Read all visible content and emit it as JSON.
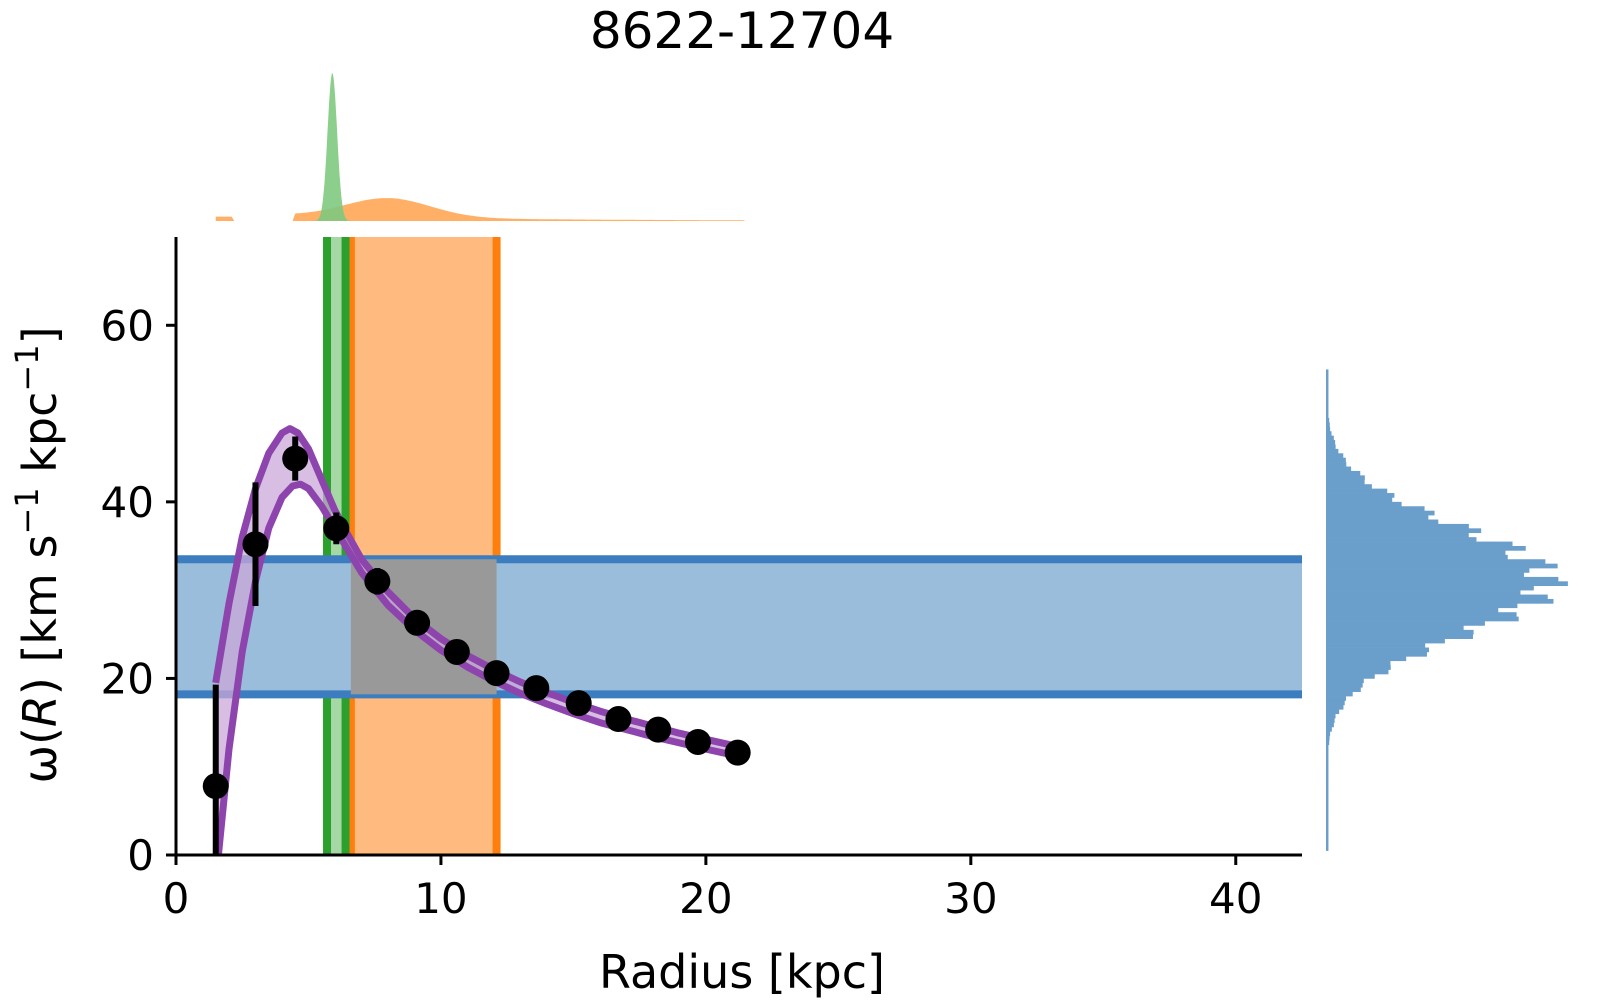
{
  "chart_data": {
    "type": "scatter",
    "title": "8622-12704",
    "xlabel": "Radius [kpc]",
    "ylabel": "ω(R) [km s⁻¹ kpc⁻¹]",
    "xlim": [
      0,
      42.5
    ],
    "ylim": [
      0,
      70
    ],
    "xticks": [
      0,
      10,
      20,
      30,
      40
    ],
    "yticks": [
      0,
      20,
      40,
      60
    ],
    "grid": false,
    "legend": "none",
    "colors": {
      "points": "#000000",
      "model": "#8e44ad",
      "model_fill": "#c9a8d8",
      "pattern_band": "#3b7dbf",
      "pattern_band_fill": "#9bbddc",
      "corotation_orange": "#ff7f0e",
      "corotation_fill": "#ffbb7f",
      "bar_green": "#2ca02c",
      "overlap_fill": "#999999",
      "hist_blue": "#6a9ecb",
      "hist_orange": "#ffb066",
      "hist_green": "#7fc97f"
    },
    "data_points": [
      {
        "x": 1.5,
        "y": 7.8,
        "err_low": 7.8,
        "err_high": 11.5
      },
      {
        "x": 3.0,
        "y": 35.2,
        "err_low": 7.0,
        "err_high": 7.0
      },
      {
        "x": 4.5,
        "y": 44.9,
        "err_low": 2.5,
        "err_high": 2.5
      },
      {
        "x": 6.05,
        "y": 37.0,
        "err_low": 1.8,
        "err_high": 1.8
      },
      {
        "x": 7.6,
        "y": 31.0,
        "err_low": 1.5,
        "err_high": 1.5
      },
      {
        "x": 9.1,
        "y": 26.3,
        "err_low": 1.0,
        "err_high": 1.0
      },
      {
        "x": 10.6,
        "y": 23.0,
        "err_low": 0.8,
        "err_high": 0.8
      },
      {
        "x": 12.1,
        "y": 20.6,
        "err_low": 0.6,
        "err_high": 0.6
      },
      {
        "x": 13.6,
        "y": 18.9,
        "err_low": 0.5,
        "err_high": 0.5
      },
      {
        "x": 15.2,
        "y": 17.2,
        "err_low": 0.5,
        "err_high": 0.5
      },
      {
        "x": 16.7,
        "y": 15.4,
        "err_low": 0.4,
        "err_high": 0.4
      },
      {
        "x": 18.2,
        "y": 14.2,
        "err_low": 0.4,
        "err_high": 0.4
      },
      {
        "x": 19.7,
        "y": 12.8,
        "err_low": 0.4,
        "err_high": 0.4
      },
      {
        "x": 21.2,
        "y": 11.6,
        "err_low": 0.4,
        "err_high": 0.4
      }
    ],
    "model_upper": [
      [
        1.5,
        19.5
      ],
      [
        2.0,
        28.5
      ],
      [
        2.5,
        36.0
      ],
      [
        3.0,
        41.5
      ],
      [
        3.5,
        45.5
      ],
      [
        4.0,
        47.8
      ],
      [
        4.3,
        48.3
      ],
      [
        4.6,
        47.8
      ],
      [
        5.0,
        46.0
      ],
      [
        5.5,
        42.5
      ],
      [
        6.0,
        39.0
      ],
      [
        6.5,
        36.2
      ],
      [
        7.0,
        33.5
      ],
      [
        8.0,
        29.8
      ],
      [
        9.0,
        26.8
      ],
      [
        10.0,
        24.5
      ],
      [
        11.0,
        22.6
      ],
      [
        12.0,
        21.0
      ],
      [
        13.0,
        19.6
      ],
      [
        14.0,
        18.4
      ],
      [
        15.0,
        17.3
      ],
      [
        16.0,
        16.3
      ],
      [
        17.0,
        15.4
      ],
      [
        18.0,
        14.6
      ],
      [
        19.0,
        13.8
      ],
      [
        20.0,
        13.1
      ],
      [
        21.2,
        12.3
      ]
    ],
    "model_lower": [
      [
        1.6,
        0.0
      ],
      [
        2.0,
        12.0
      ],
      [
        2.5,
        23.0
      ],
      [
        3.0,
        31.0
      ],
      [
        3.5,
        37.0
      ],
      [
        4.0,
        40.5
      ],
      [
        4.4,
        41.8
      ],
      [
        4.7,
        42.0
      ],
      [
        5.0,
        41.5
      ],
      [
        5.5,
        39.5
      ],
      [
        6.0,
        37.0
      ],
      [
        6.5,
        34.5
      ],
      [
        7.0,
        32.0
      ],
      [
        8.0,
        28.3
      ],
      [
        9.0,
        25.5
      ],
      [
        10.0,
        23.2
      ],
      [
        11.0,
        21.3
      ],
      [
        12.0,
        19.7
      ],
      [
        13.0,
        18.3
      ],
      [
        14.0,
        17.1
      ],
      [
        15.0,
        16.0
      ],
      [
        16.0,
        15.0
      ],
      [
        17.0,
        14.2
      ],
      [
        18.0,
        13.4
      ],
      [
        19.0,
        12.7
      ],
      [
        20.0,
        12.0
      ],
      [
        21.2,
        11.2
      ]
    ],
    "pattern_speed_band": [
      18.2,
      33.5
    ],
    "corotation_band": [
      6.6,
      12.1
    ],
    "bar_length_band": [
      5.7,
      6.4
    ],
    "top_histograms": {
      "green": {
        "x_range": [
          5.0,
          6.8
        ],
        "peak_x": 5.9,
        "peak_height": 1.0
      },
      "orange": {
        "x_range": [
          1.5,
          21.5
        ],
        "peak_x": 8.0,
        "peak_height": 0.13
      }
    },
    "right_histogram": {
      "y_range": [
        0.5,
        55
      ],
      "peak_y": 31.0,
      "peak_width": 1.0
    }
  }
}
